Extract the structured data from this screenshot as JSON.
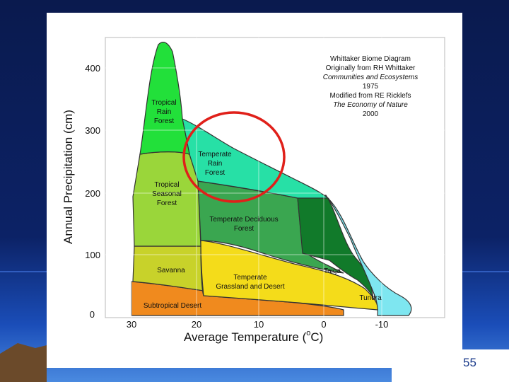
{
  "slide": {
    "page_number": "55",
    "colors": {
      "background_top": "#0a1a4e",
      "background_bottom": "#1a4db8",
      "ground": "#6b4a2a"
    }
  },
  "diagram": {
    "title_block": {
      "line1": "Whittaker Biome Diagram",
      "line2": "Originally from RH Whittaker",
      "line3": "Communities and Ecosystems",
      "line4": "1975",
      "line5": "Modified from RE Ricklefs",
      "line6": "The Economy of Nature",
      "line7": "2000"
    },
    "y_axis": {
      "label": "Annual Precipitation (cm)",
      "ticks": [
        "0",
        "100",
        "200",
        "300",
        "400"
      ]
    },
    "x_axis": {
      "label_prefix": "Average Temperature (",
      "label_degree": "o",
      "label_unit": "C)",
      "ticks": [
        "30",
        "20",
        "10",
        "0",
        "-10"
      ]
    },
    "biomes": {
      "tropical_rain_forest": {
        "line1": "Tropical",
        "line2": "Rain",
        "line3": "Forest",
        "color": "#22e03a"
      },
      "temperate_rain_forest": {
        "line1": "Temperate",
        "line2": "Rain",
        "line3": "Forest",
        "color": "#27e0a6"
      },
      "tropical_seasonal_forest": {
        "line1": "Tropical",
        "line2": "Seasonal",
        "line3": "Forest",
        "color": "#9ad63a"
      },
      "temperate_deciduous_forest": {
        "line1": "Temperate Deciduous",
        "line2": "Forest",
        "color": "#3aa650"
      },
      "taiga": {
        "label": "Taiga",
        "color": "#117a2a"
      },
      "savanna": {
        "label": "Savanna",
        "color": "#c8d22a"
      },
      "temperate_grassland_desert": {
        "line1": "Temperate",
        "line2": "Grassland and Desert",
        "color": "#f4dc1a"
      },
      "tundra": {
        "label": "Tundra",
        "color": "#7ee6f0"
      },
      "subtropical_desert": {
        "label": "Subtropical Desert",
        "color": "#f08a1e"
      }
    },
    "annotation_circle_color": "#e0201a"
  }
}
